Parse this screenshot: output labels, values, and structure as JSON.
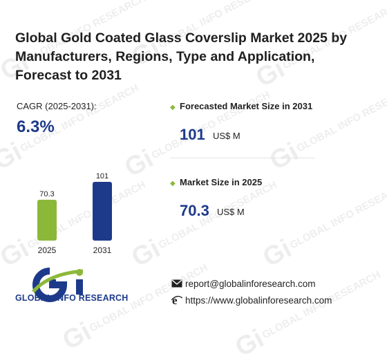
{
  "header": {
    "title": "Global Gold Coated Glass Coverslip Market 2025 by Manufacturers, Regions, Type and Application, Forecast to 2031"
  },
  "cagr": {
    "label": "CAGR (2025-2031):",
    "value": "6.3%"
  },
  "stats": [
    {
      "title": "Forecasted Market Size in 2031",
      "value": "101",
      "unit": "US$ M"
    },
    {
      "title": "Market Size in 2025",
      "value": "70.3",
      "unit": "US$ M"
    }
  ],
  "chart_data": {
    "type": "bar",
    "categories": [
      "2025",
      "2031"
    ],
    "values": [
      70.3,
      101
    ],
    "data_labels": [
      "70.3",
      "101"
    ],
    "colors": [
      "#8cb83a",
      "#1d3a8a"
    ],
    "ylim": [
      0,
      101
    ]
  },
  "brand": {
    "name": "GLOBAL INFO RESEARCH",
    "accent_green": "#8cb83a",
    "accent_blue": "#1d3a8a"
  },
  "watermark": {
    "text": "GLOBAL INFO RESEARCH",
    "mark": "Gi"
  },
  "contact": {
    "email": "report@globalinforesearch.com",
    "website": "https://www.globalinforesearch.com",
    "email_icon": "envelope-icon",
    "website_icon": "browser-e-icon"
  }
}
